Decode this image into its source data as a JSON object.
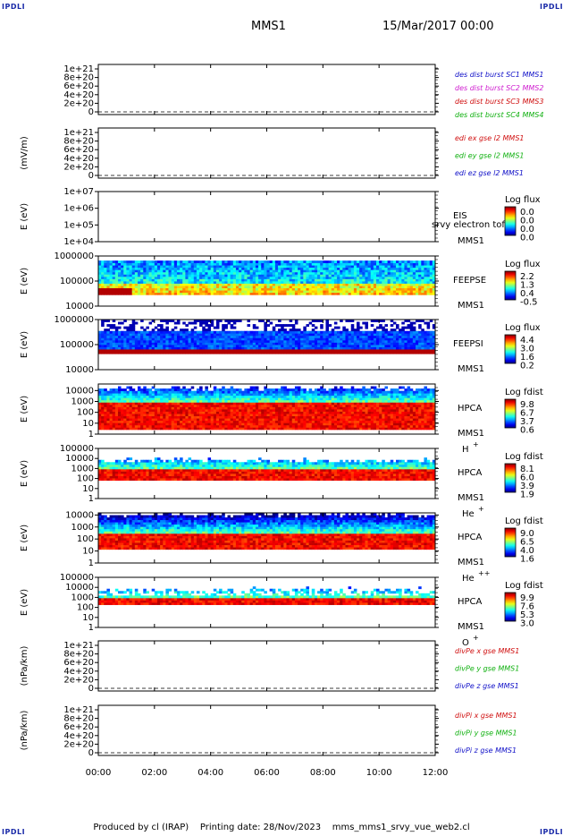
{
  "corner_label": "IPDLI",
  "header": {
    "title": "MMS1",
    "datetime": "15/Mar/2017 00:00"
  },
  "footer": {
    "produced_by": "Produced by cl (IRAP)",
    "printing_date": "Printing date: 28/Nov/2023",
    "script_name": "mms_mms1_srvy_vue_web2.cl"
  },
  "time_axis": {
    "ticks": [
      "00:00",
      "02:00",
      "04:00",
      "06:00",
      "08:00",
      "10:00",
      "12:00"
    ],
    "range_hours": [
      0,
      12
    ]
  },
  "chart_data": [
    {
      "type": "line",
      "ylabel": "",
      "yticks": [
        "0",
        "2e+20",
        "4e+20",
        "6e+20",
        "8e+20",
        "1e+21"
      ],
      "ylim": [
        0,
        1e+21
      ],
      "series": [
        {
          "name": "des dist burst SC1 MMS1",
          "color": "#1010c8",
          "y": [
            0,
            0,
            0,
            0,
            0,
            0,
            0
          ]
        },
        {
          "name": "des dist burst SC2 MMS2",
          "color": "#d020d0",
          "y": [
            0,
            0,
            0,
            0,
            0,
            0,
            0
          ]
        },
        {
          "name": "des dist burst SC3 MMS3",
          "color": "#d01010",
          "y": [
            0,
            0,
            0,
            0,
            0,
            0,
            0
          ]
        },
        {
          "name": "des dist burst SC4 MMS4",
          "color": "#10b010",
          "y": [
            0,
            0,
            0,
            0,
            0,
            0,
            0
          ]
        }
      ]
    },
    {
      "type": "line",
      "ylabel": "(mV/m)",
      "yticks": [
        "0",
        "2e+20",
        "4e+20",
        "6e+20",
        "8e+20",
        "1e+21"
      ],
      "ylim": [
        0,
        1e+21
      ],
      "series": [
        {
          "name": "edi ex gse l2 MMS1",
          "color": "#d01010",
          "y": [
            0,
            0,
            0,
            0,
            0,
            0,
            0
          ]
        },
        {
          "name": "edi ey gse l2 MMS1",
          "color": "#10b010",
          "y": [
            0,
            0,
            0,
            0,
            0,
            0,
            0
          ]
        },
        {
          "name": "edi ez gse l2 MMS1",
          "color": "#1010c8",
          "y": [
            0,
            0,
            0,
            0,
            0,
            0,
            0
          ]
        }
      ]
    },
    {
      "type": "heatmap",
      "ylabel": "E (eV)",
      "yticks": [
        "1e+04",
        "1e+05",
        "1e+06",
        "1e+07"
      ],
      "ylim": [
        10000.0,
        10000000.0
      ],
      "instrument": "EIS",
      "spacecraft": "MMS1",
      "overlay_text": "srvy electron tof",
      "colorbar": {
        "title": "Log flux",
        "ticks": [
          "0.0",
          "0.0",
          "0.0",
          "0.0"
        ]
      },
      "filled": false
    },
    {
      "type": "heatmap",
      "ylabel": "E (eV)",
      "yticks": [
        "10000",
        "100000",
        "1000000"
      ],
      "ylim": [
        10000.0,
        1000000.0
      ],
      "instrument": "FEEPSE",
      "spacecraft": "MMS1",
      "colorbar": {
        "title": "Log flux",
        "ticks": [
          "2.2",
          "1.3",
          "0.4",
          "-0.5"
        ]
      },
      "filled": true
    },
    {
      "type": "heatmap",
      "ylabel": "E (eV)",
      "yticks": [
        "10000",
        "100000",
        "1000000"
      ],
      "ylim": [
        10000.0,
        1000000.0
      ],
      "instrument": "FEEPSI",
      "spacecraft": "MMS1",
      "colorbar": {
        "title": "Log flux",
        "ticks": [
          "4.4",
          "3.0",
          "1.6",
          "0.2"
        ]
      },
      "filled": true
    },
    {
      "type": "heatmap",
      "ylabel": "E (eV)",
      "yticks": [
        "1",
        "10",
        "100",
        "1000",
        "10000"
      ],
      "ylim": [
        1,
        40000
      ],
      "instrument": "HPCA",
      "spacecraft": "MMS1",
      "species": "H",
      "species_charge": "+",
      "colorbar": {
        "title": "Log fdist",
        "ticks": [
          "9.8",
          "6.7",
          "3.7",
          "0.6"
        ]
      },
      "filled": true
    },
    {
      "type": "heatmap",
      "ylabel": "E (eV)",
      "yticks": [
        "1",
        "10",
        "100",
        "1000",
        "10000",
        "100000"
      ],
      "ylim": [
        1,
        100000
      ],
      "instrument": "HPCA",
      "spacecraft": "MMS1",
      "species": "He",
      "species_charge": "+",
      "colorbar": {
        "title": "Log fdist",
        "ticks": [
          "8.1",
          "6.0",
          "3.9",
          "1.9"
        ]
      },
      "filled": true
    },
    {
      "type": "heatmap",
      "ylabel": "E (eV)",
      "yticks": [
        "1",
        "10",
        "100",
        "1000",
        "10000"
      ],
      "ylim": [
        1,
        15000
      ],
      "instrument": "HPCA",
      "spacecraft": "MMS1",
      "species": "He",
      "species_charge": "++",
      "colorbar": {
        "title": "Log fdist",
        "ticks": [
          "9.0",
          "6.5",
          "4.0",
          "1.6"
        ]
      },
      "filled": true
    },
    {
      "type": "heatmap",
      "ylabel": "E (eV)",
      "yticks": [
        "1",
        "10",
        "100",
        "1000",
        "10000",
        "100000"
      ],
      "ylim": [
        1,
        100000
      ],
      "instrument": "HPCA",
      "spacecraft": "MMS1",
      "species": "O",
      "species_charge": "+",
      "colorbar": {
        "title": "Log fdist",
        "ticks": [
          "9.9",
          "7.6",
          "5.3",
          "3.0"
        ]
      },
      "filled": true
    },
    {
      "type": "line",
      "ylabel": "(nPa/km)",
      "yticks": [
        "0",
        "2e+20",
        "4e+20",
        "6e+20",
        "8e+20",
        "1e+21"
      ],
      "ylim": [
        0,
        1e+21
      ],
      "series": [
        {
          "name": "divPe x gse MMS1",
          "color": "#d01010",
          "y": [
            0,
            0,
            0,
            0,
            0,
            0,
            0
          ]
        },
        {
          "name": "divPe y gse MMS1",
          "color": "#10b010",
          "y": [
            0,
            0,
            0,
            0,
            0,
            0,
            0
          ]
        },
        {
          "name": "divPe z gse MMS1",
          "color": "#1010c8",
          "y": [
            0,
            0,
            0,
            0,
            0,
            0,
            0
          ]
        }
      ]
    },
    {
      "type": "line",
      "ylabel": "(nPa/km)",
      "yticks": [
        "0",
        "2e+20",
        "4e+20",
        "6e+20",
        "8e+20",
        "1e+21"
      ],
      "ylim": [
        0,
        1e+21
      ],
      "series": [
        {
          "name": "divPi x gse MMS1",
          "color": "#d01010",
          "y": [
            0,
            0,
            0,
            0,
            0,
            0,
            0
          ]
        },
        {
          "name": "divPi y gse MMS1",
          "color": "#10b010",
          "y": [
            0,
            0,
            0,
            0,
            0,
            0,
            0
          ]
        },
        {
          "name": "divPi z gse MMS1",
          "color": "#1010c8",
          "y": [
            0,
            0,
            0,
            0,
            0,
            0,
            0
          ]
        }
      ]
    }
  ]
}
